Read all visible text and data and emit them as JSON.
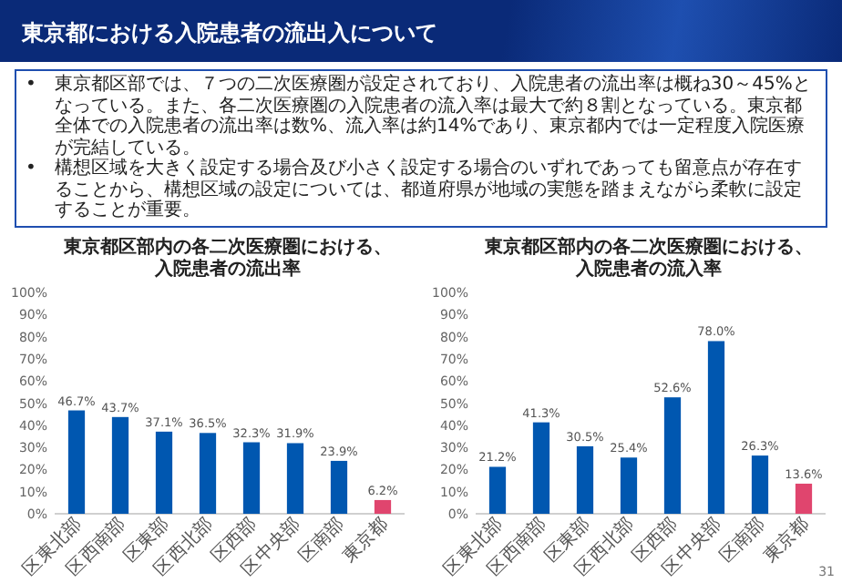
{
  "chart_data": [
    {
      "type": "other",
      "title": "東京都における入院患者の流出入について",
      "annotations": [
        "•　東京都区部では、７つの二次医療圏が設定されており、入院患者の流出率は概ね30～45%となっている。また、各二次医療圏の入院患者の流入率は最大で約８割となっている。東京都全体での入院患者の流出率は数%、流入率は約14%であり、東京都内では一定程度入院医療が完結している。",
        "•　構想区域を大きく設定する場合及び小さく設定する場合のいずれであっても留意点が存在することから、構想区域の設定については、都道府県が地域の実態を踏まえながら柔軟に設定することが重要。",
        "31"
      ]
    },
    {
      "type": "bar",
      "title": "東京都区部内の各二次医療圏における、",
      "subtitle": "入院患者の流出率",
      "categories": [
        "区東北部",
        "区西南部",
        "区東部",
        "区西北部",
        "区西部",
        "区中央部",
        "区南部",
        "東京都"
      ],
      "values": [
        46.7,
        43.7,
        37.1,
        36.5,
        32.3,
        31.9,
        23.9,
        6.2
      ],
      "value_labels": [
        "46.7%",
        "43.7%",
        "37.1%",
        "36.5%",
        "32.3%",
        "31.9%",
        "23.9%",
        "6.2%"
      ],
      "colors": [
        "#0057b0",
        "#0057b0",
        "#0057b0",
        "#0057b0",
        "#0057b0",
        "#0057b0",
        "#0057b0",
        "#e0456e"
      ],
      "ylim": [
        0,
        100
      ],
      "yticks": [
        {
          "value": 0,
          "label": "0%"
        },
        {
          "value": 10,
          "label": "10%"
        },
        {
          "value": 20,
          "label": "20%"
        },
        {
          "value": 30,
          "label": "30%"
        },
        {
          "value": 40,
          "label": "40%"
        },
        {
          "value": 50,
          "label": "50%"
        },
        {
          "value": 60,
          "label": "60%"
        },
        {
          "value": 70,
          "label": "70%"
        },
        {
          "value": 80,
          "label": "80%"
        },
        {
          "value": 90,
          "label": "90%"
        },
        {
          "value": 100,
          "label": "100%"
        }
      ]
    },
    {
      "type": "bar",
      "title": "東京都区部内の各二次医療圏における、",
      "subtitle": "入院患者の流入率",
      "categories": [
        "区東北部",
        "区西南部",
        "区東部",
        "区西北部",
        "区西部",
        "区中央部",
        "区南部",
        "東京都"
      ],
      "values": [
        21.2,
        41.3,
        30.5,
        25.4,
        52.6,
        78.0,
        26.3,
        13.6
      ],
      "value_labels": [
        "21.2%",
        "41.3%",
        "30.5%",
        "25.4%",
        "52.6%",
        "78.0%",
        "26.3%",
        "13.6%"
      ],
      "colors": [
        "#0057b0",
        "#0057b0",
        "#0057b0",
        "#0057b0",
        "#0057b0",
        "#0057b0",
        "#0057b0",
        "#e0456e"
      ],
      "ylim": [
        0,
        100
      ],
      "yticks": [
        {
          "value": 0,
          "label": "0%"
        },
        {
          "value": 10,
          "label": "10%"
        },
        {
          "value": 20,
          "label": "20%"
        },
        {
          "value": 30,
          "label": "30%"
        },
        {
          "value": 40,
          "label": "40%"
        },
        {
          "value": 50,
          "label": "50%"
        },
        {
          "value": 60,
          "label": "60%"
        },
        {
          "value": 70,
          "label": "70%"
        },
        {
          "value": 80,
          "label": "80%"
        },
        {
          "value": 90,
          "label": "90%"
        },
        {
          "value": 100,
          "label": "100%"
        }
      ]
    }
  ]
}
